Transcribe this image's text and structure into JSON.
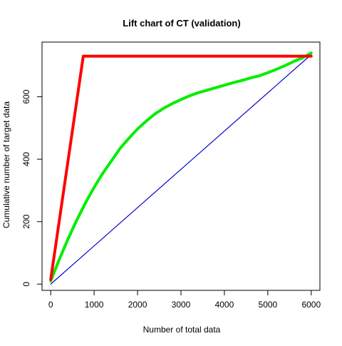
{
  "chart_data": {
    "type": "line",
    "title": "Lift chart of CT (validation)",
    "xlabel": "Number of total data",
    "ylabel": "Cumulative number of target data",
    "xlim": [
      -200,
      6200
    ],
    "ylim": [
      -20,
      775
    ],
    "x_ticks": [
      0,
      1000,
      2000,
      3000,
      4000,
      5000,
      6000
    ],
    "y_ticks": [
      0,
      200,
      400,
      600
    ],
    "grid": false,
    "legend": "none",
    "series": [
      {
        "color": "#0000CD",
        "line_width": "thin",
        "x": [
          0,
          6000
        ],
        "y": [
          0,
          735
        ]
      },
      {
        "color": "#00EE00",
        "line_width": "thick",
        "x": [
          0,
          200,
          400,
          600,
          800,
          1000,
          1200,
          1400,
          1600,
          1800,
          2000,
          2200,
          2400,
          2600,
          2800,
          3000,
          3200,
          3400,
          3600,
          3800,
          4000,
          4200,
          4400,
          4600,
          4800,
          5000,
          5200,
          5400,
          5600,
          5800,
          6000
        ],
        "y": [
          10,
          80,
          145,
          205,
          260,
          310,
          355,
          395,
          435,
          467,
          497,
          522,
          545,
          563,
          578,
          591,
          603,
          613,
          621,
          629,
          637,
          645,
          652,
          660,
          667,
          677,
          688,
          700,
          713,
          725,
          740
        ]
      },
      {
        "color": "#FF0000",
        "line_width": "thick",
        "x": [
          0,
          750,
          6000
        ],
        "y": [
          15,
          730,
          730
        ]
      }
    ]
  }
}
